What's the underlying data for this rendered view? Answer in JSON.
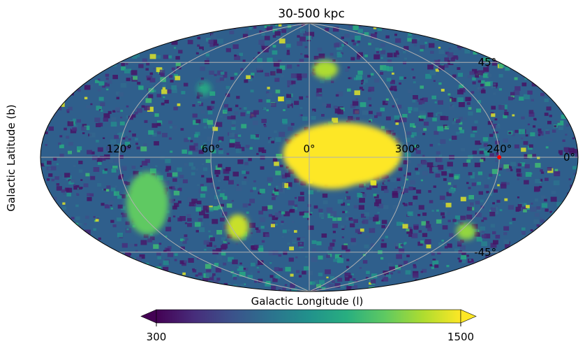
{
  "chart_data": {
    "type": "heatmap",
    "projection": "hammer",
    "title": "30-500 kpc",
    "xlabel": "Galactic Longitude (l)",
    "ylabel": "Galactic Latitude (b)",
    "x_tick_labels": [
      "120°",
      "60°",
      "0°",
      "300°",
      "240°"
    ],
    "y_tick_labels": [
      "45°",
      "0°",
      "-45°"
    ],
    "grid": true,
    "grid_color": "#b0b0b0",
    "colormap": "viridis",
    "color_range": [
      300,
      1500
    ],
    "colorbar": {
      "orientation": "horizontal",
      "placement": "bottom",
      "extend": "both",
      "tick_labels": [
        "300",
        "1500"
      ]
    },
    "marker": {
      "l": 240,
      "b": 0,
      "color": "#ff0000"
    },
    "high_density_regions": [
      {
        "l": 340,
        "b": 2,
        "value": 1500
      },
      {
        "l": 110,
        "b": -25,
        "value": 1200
      },
      {
        "l": 55,
        "b": -42,
        "value": 1400
      },
      {
        "l": 345,
        "b": 55,
        "value": 1350
      },
      {
        "l": 235,
        "b": -40,
        "value": 1300
      },
      {
        "l": 80,
        "b": 40,
        "value": 1000
      }
    ]
  }
}
